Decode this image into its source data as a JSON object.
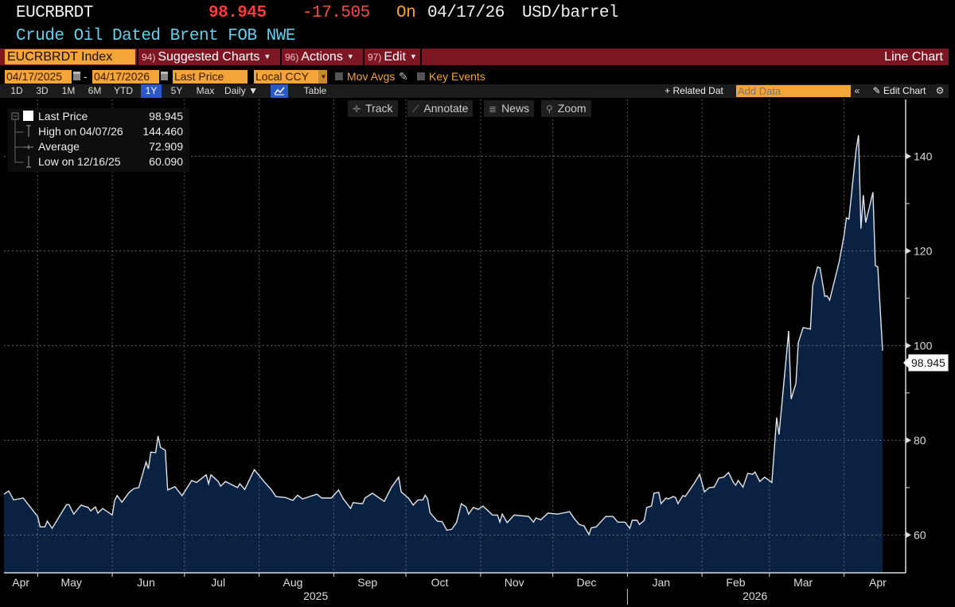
{
  "header": {
    "ticker": "EUCRBRDT",
    "price": "98.945",
    "change": "-17.505",
    "on_label": "On",
    "date": "04/17/26",
    "unit": "USD/barrel",
    "description": "Crude Oil Dated Brent FOB NWE"
  },
  "menubar": {
    "security": "EUCRBRDT Index",
    "menus": [
      {
        "num": "94)",
        "label": "Suggested Charts"
      },
      {
        "num": "96)",
        "label": "Actions"
      },
      {
        "num": "97)",
        "label": "Edit"
      }
    ],
    "chart_type": "Line Chart"
  },
  "controls": {
    "start_date": "04/17/2025",
    "separator": "-",
    "end_date": "04/17/2026",
    "field": "Last Price",
    "currency": "Local CCY",
    "mov_avgs": "Mov Avgs",
    "key_events": "Key Events"
  },
  "periodbar": {
    "periods": [
      "1D",
      "3D",
      "1M",
      "6M",
      "YTD",
      "1Y",
      "5Y",
      "Max"
    ],
    "selected": "1Y",
    "frequency": "Daily",
    "table": "Table",
    "related": "+ Related Dat",
    "add_data_placeholder": "Add Data",
    "collapse": "«",
    "edit_chart": "Edit Chart"
  },
  "chart_tools": [
    {
      "label": "Track",
      "icon": "crosshair-icon"
    },
    {
      "label": "Annotate",
      "icon": "pencil-icon"
    },
    {
      "label": "News",
      "icon": "news-icon"
    },
    {
      "label": "Zoom",
      "icon": "magnifier-icon"
    }
  ],
  "legend": {
    "items": [
      {
        "label": "Last Price",
        "value": "98.945"
      },
      {
        "label": "High on 04/07/26",
        "value": "144.460"
      },
      {
        "label": "Average",
        "value": "72.909"
      },
      {
        "label": "Low on 12/16/25",
        "value": "60.090"
      }
    ]
  },
  "colors": {
    "background": "#000000",
    "area_fill": "#0a2142",
    "line": "#dfe4ea",
    "price_up_down": "#ff3b3b",
    "accent_orange": "#f3a53a",
    "menubar": "#7b1622",
    "selected": "#2b58c9"
  },
  "chart_data": {
    "type": "area",
    "title": "",
    "xlabel": "",
    "ylabel": "",
    "xlim": [
      "2025-04-17",
      "2026-04-17"
    ],
    "ylim": [
      52,
      152
    ],
    "y_ticks": [
      60,
      80,
      100,
      120,
      140
    ],
    "y_minor_ticks": [
      70,
      90,
      110,
      130
    ],
    "y_axis_side": "right",
    "grid": true,
    "last_value_label": "98.945",
    "x_month_labels": [
      "Apr",
      "May",
      "Jun",
      "Jul",
      "Aug",
      "Sep",
      "Oct",
      "Nov",
      "Dec",
      "Jan",
      "Feb",
      "Mar",
      "Apr"
    ],
    "x_year_labels": [
      "2025",
      "2026"
    ],
    "points": [
      [
        "2025-04-17",
        68.6
      ],
      [
        "2025-04-19",
        69.3
      ],
      [
        "2025-04-21",
        67.4
      ],
      [
        "2025-04-25",
        67.8
      ],
      [
        "2025-05-01",
        63.9
      ],
      [
        "2025-05-02",
        61.7
      ],
      [
        "2025-05-04",
        61.7
      ],
      [
        "2025-05-05",
        62.9
      ],
      [
        "2025-05-07",
        61.4
      ],
      [
        "2025-05-13",
        66.4
      ],
      [
        "2025-05-14",
        66.4
      ],
      [
        "2025-05-16",
        64.4
      ],
      [
        "2025-05-19",
        66.3
      ],
      [
        "2025-05-22",
        65.8
      ],
      [
        "2025-05-23",
        65.1
      ],
      [
        "2025-05-25",
        65.9
      ],
      [
        "2025-05-26",
        64.6
      ],
      [
        "2025-05-28",
        65.6
      ],
      [
        "2025-06-01",
        64.2
      ],
      [
        "2025-06-02",
        67.3
      ],
      [
        "2025-06-03",
        68.3
      ],
      [
        "2025-06-05",
        66.9
      ],
      [
        "2025-06-08",
        69.0
      ],
      [
        "2025-06-10",
        69.8
      ],
      [
        "2025-06-12",
        70.0
      ],
      [
        "2025-06-15",
        75.4
      ],
      [
        "2025-06-16",
        74.0
      ],
      [
        "2025-06-17",
        77.5
      ],
      [
        "2025-06-19",
        77.4
      ],
      [
        "2025-06-20",
        80.9
      ],
      [
        "2025-06-21",
        78.5
      ],
      [
        "2025-06-23",
        77.9
      ],
      [
        "2025-06-24",
        69.5
      ],
      [
        "2025-06-27",
        70.2
      ],
      [
        "2025-06-30",
        68.3
      ],
      [
        "2025-07-04",
        71.5
      ],
      [
        "2025-07-06",
        71.1
      ],
      [
        "2025-07-10",
        72.7
      ],
      [
        "2025-07-11",
        70.8
      ],
      [
        "2025-07-12",
        72.7
      ],
      [
        "2025-07-15",
        71.3
      ],
      [
        "2025-07-16",
        70.3
      ],
      [
        "2025-07-18",
        71.3
      ],
      [
        "2025-07-23",
        70.0
      ],
      [
        "2025-07-24",
        70.8
      ],
      [
        "2025-07-26",
        69.6
      ],
      [
        "2025-07-30",
        73.8
      ],
      [
        "2025-08-03",
        71.3
      ],
      [
        "2025-08-06",
        69.6
      ],
      [
        "2025-08-08",
        68.1
      ],
      [
        "2025-08-12",
        67.9
      ],
      [
        "2025-08-15",
        67.3
      ],
      [
        "2025-08-17",
        68.4
      ],
      [
        "2025-08-19",
        67.6
      ],
      [
        "2025-08-25",
        68.6
      ],
      [
        "2025-08-27",
        67.8
      ],
      [
        "2025-08-31",
        67.8
      ],
      [
        "2025-09-03",
        69.5
      ],
      [
        "2025-09-05",
        67.6
      ],
      [
        "2025-09-08",
        65.6
      ],
      [
        "2025-09-09",
        66.8
      ],
      [
        "2025-09-13",
        66.6
      ],
      [
        "2025-09-14",
        67.8
      ],
      [
        "2025-09-17",
        68.8
      ],
      [
        "2025-09-22",
        67.1
      ],
      [
        "2025-09-25",
        70.1
      ],
      [
        "2025-09-28",
        72.2
      ],
      [
        "2025-09-29",
        69.1
      ],
      [
        "2025-10-02",
        67.8
      ],
      [
        "2025-10-04",
        66.3
      ],
      [
        "2025-10-06",
        67.4
      ],
      [
        "2025-10-08",
        67.4
      ],
      [
        "2025-10-09",
        68.4
      ],
      [
        "2025-10-10",
        67.6
      ],
      [
        "2025-10-11",
        64.7
      ],
      [
        "2025-10-14",
        62.9
      ],
      [
        "2025-10-16",
        62.8
      ],
      [
        "2025-10-18",
        61.0
      ],
      [
        "2025-10-20",
        61.2
      ],
      [
        "2025-10-22",
        62.6
      ],
      [
        "2025-10-24",
        66.6
      ],
      [
        "2025-10-26",
        65.9
      ],
      [
        "2025-10-27",
        64.4
      ],
      [
        "2025-10-29",
        65.8
      ],
      [
        "2025-10-31",
        65.4
      ],
      [
        "2025-11-02",
        66.1
      ],
      [
        "2025-11-06",
        64.2
      ],
      [
        "2025-11-08",
        64.2
      ],
      [
        "2025-11-09",
        62.7
      ],
      [
        "2025-11-10",
        64.4
      ],
      [
        "2025-11-12",
        62.6
      ],
      [
        "2025-11-15",
        64.2
      ],
      [
        "2025-11-21",
        63.9
      ],
      [
        "2025-11-23",
        62.7
      ],
      [
        "2025-11-24",
        63.6
      ],
      [
        "2025-11-26",
        63.2
      ],
      [
        "2025-11-29",
        64.6
      ],
      [
        "2025-12-03",
        64.4
      ],
      [
        "2025-12-05",
        64.6
      ],
      [
        "2025-12-08",
        64.9
      ],
      [
        "2025-12-10",
        63.4
      ],
      [
        "2025-12-12",
        62.2
      ],
      [
        "2025-12-14",
        61.9
      ],
      [
        "2025-12-16",
        60.09
      ],
      [
        "2025-12-17",
        61.5
      ],
      [
        "2025-12-19",
        61.7
      ],
      [
        "2025-12-23",
        63.9
      ],
      [
        "2025-12-26",
        63.9
      ],
      [
        "2025-12-28",
        62.7
      ],
      [
        "2025-12-31",
        62.7
      ],
      [
        "2026-01-02",
        61.4
      ],
      [
        "2026-01-03",
        63.1
      ],
      [
        "2026-01-05",
        63.1
      ],
      [
        "2026-01-06",
        62.2
      ],
      [
        "2026-01-08",
        63.1
      ],
      [
        "2026-01-09",
        65.8
      ],
      [
        "2026-01-11",
        66.1
      ],
      [
        "2026-01-12",
        68.8
      ],
      [
        "2026-01-14",
        69.0
      ],
      [
        "2026-01-15",
        66.6
      ],
      [
        "2026-01-17",
        67.8
      ],
      [
        "2026-01-18",
        67.6
      ],
      [
        "2026-01-20",
        68.1
      ],
      [
        "2026-01-21",
        67.9
      ],
      [
        "2026-01-22",
        66.6
      ],
      [
        "2026-01-24",
        68.3
      ],
      [
        "2026-01-25",
        68.1
      ],
      [
        "2026-01-29",
        71.1
      ],
      [
        "2026-01-31",
        72.8
      ],
      [
        "2026-02-02",
        69.1
      ],
      [
        "2026-02-04",
        70.0
      ],
      [
        "2026-02-06",
        70.1
      ],
      [
        "2026-02-08",
        72.0
      ],
      [
        "2026-02-10",
        72.2
      ],
      [
        "2026-02-12",
        73.2
      ],
      [
        "2026-02-14",
        71.1
      ],
      [
        "2026-02-15",
        70.5
      ],
      [
        "2026-02-16",
        71.5
      ],
      [
        "2026-02-18",
        70.1
      ],
      [
        "2026-02-20",
        73.0
      ],
      [
        "2026-02-22",
        72.8
      ],
      [
        "2026-02-23",
        73.3
      ],
      [
        "2026-02-25",
        71.3
      ],
      [
        "2026-02-27",
        72.2
      ],
      [
        "2026-03-02",
        71.1
      ],
      [
        "2026-03-04",
        84.8
      ],
      [
        "2026-03-05",
        81.2
      ],
      [
        "2026-03-09",
        103.1
      ],
      [
        "2026-03-10",
        88.7
      ],
      [
        "2026-03-12",
        92.0
      ],
      [
        "2026-03-13",
        100.6
      ],
      [
        "2026-03-15",
        103.8
      ],
      [
        "2026-03-18",
        103.5
      ],
      [
        "2026-03-19",
        112.7
      ],
      [
        "2026-03-21",
        116.6
      ],
      [
        "2026-03-22",
        116.4
      ],
      [
        "2026-03-24",
        110.4
      ],
      [
        "2026-03-25",
        110.5
      ],
      [
        "2026-03-26",
        109.6
      ],
      [
        "2026-03-30",
        117.8
      ],
      [
        "2026-04-01",
        123.3
      ],
      [
        "2026-04-02",
        127.0
      ],
      [
        "2026-04-03",
        126.7
      ],
      [
        "2026-04-06",
        141.3
      ],
      [
        "2026-04-07",
        144.46
      ],
      [
        "2026-04-08",
        124.7
      ],
      [
        "2026-04-09",
        131.8
      ],
      [
        "2026-04-10",
        126.0
      ],
      [
        "2026-04-13",
        132.4
      ],
      [
        "2026-04-14",
        116.9
      ],
      [
        "2026-04-15",
        116.6
      ],
      [
        "2026-04-17",
        98.945
      ]
    ]
  }
}
